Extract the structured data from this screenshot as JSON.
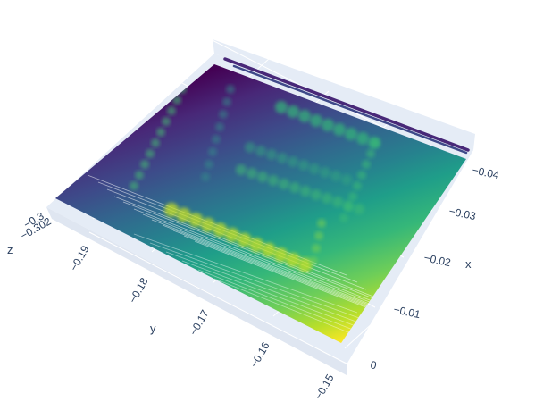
{
  "chart_data": {
    "type": "surface",
    "title": "",
    "colorscale": "viridis",
    "colors": {
      "viridis": [
        "#440154",
        "#482878",
        "#3e4989",
        "#31688e",
        "#26828e",
        "#1f9e89",
        "#35b779",
        "#6ece58",
        "#b5de2b",
        "#fde725"
      ],
      "box_pane": "#e5ecf6",
      "grid": "#ffffff",
      "tick_text": "#2a3f5f"
    },
    "axes": {
      "x": {
        "title": "x",
        "ticks": [
          "0",
          "−0.01",
          "−0.02",
          "−0.03",
          "−0.04"
        ]
      },
      "y": {
        "title": "y",
        "ticks": [
          "−0.19",
          "−0.18",
          "−0.17",
          "−0.16",
          "−0.15"
        ]
      },
      "z": {
        "title": "z",
        "ticks": [
          "−0.302",
          "−0.3"
        ]
      }
    }
  }
}
